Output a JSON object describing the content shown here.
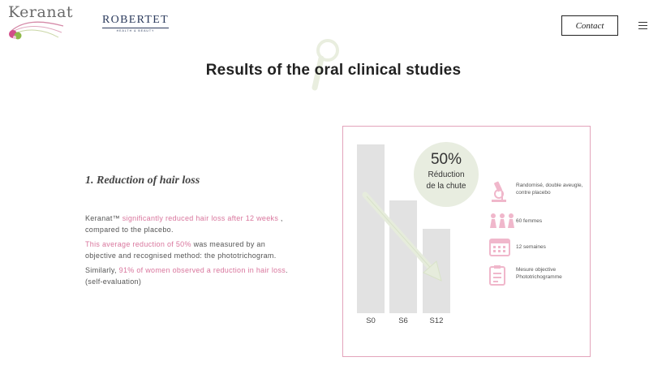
{
  "header": {
    "logo_text": "Keranat",
    "partner_name": "ROBERTET",
    "partner_tagline": "HEALTH & BEAUTY",
    "contact_label": "Contact"
  },
  "title": "Results of the oral clinical studies",
  "section": {
    "heading": "1. Reduction of hair loss",
    "p1": {
      "a": "Keranat™ ",
      "b": "significantly reduced hair loss after 12 weeks",
      "c": " , compared to the placebo."
    },
    "p2": {
      "a": "This average reduction of 50%",
      "b": " was measured by an objective and recognised method: the phototrichogram."
    },
    "p3": {
      "a": "Similarly, ",
      "b": "91% of women observed a reduction in hair loss",
      "c": ". (self-evaluation)"
    }
  },
  "infographic": {
    "stat_value": "50%",
    "stat_caption_line1": "Réduction",
    "stat_caption_line2": "de la chute",
    "bars": [
      {
        "label": "S0",
        "level": 1.0
      },
      {
        "label": "S6",
        "level": 0.67
      },
      {
        "label": "S12",
        "level": 0.5
      }
    ],
    "legend": [
      {
        "icon": "microscope-icon",
        "text": "Randomisé, double aveugle, contre placebo"
      },
      {
        "icon": "women-icon",
        "text": "60 femmes"
      },
      {
        "icon": "calendar-icon",
        "text": "12 semaines"
      },
      {
        "icon": "clipboard-icon",
        "text": "Mesure objective Phototrichogramme"
      }
    ],
    "colors": {
      "accent": "#e3a4bb",
      "pink_text": "#d9769d",
      "bar": "#e2e2e2",
      "circle": "#e8ede0",
      "arrow": "#e6ecdc"
    }
  }
}
